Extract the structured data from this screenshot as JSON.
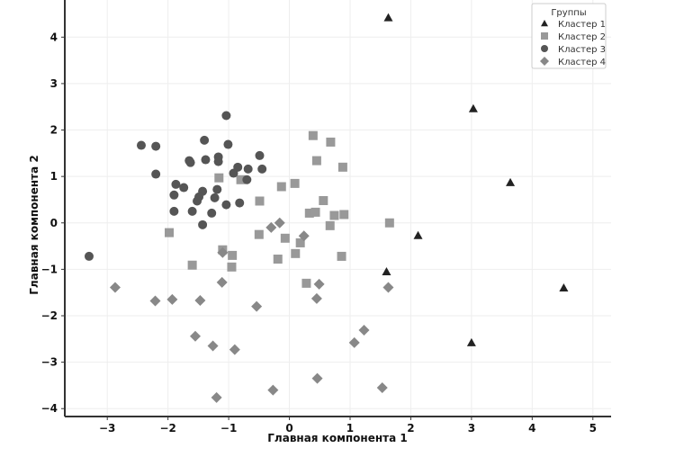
{
  "chart_data": {
    "type": "scatter",
    "title": "",
    "xlabel": "Главная компонента 1",
    "ylabel": "Главная компонента 2",
    "xlim": [
      -3.7,
      5.3
    ],
    "ylim": [
      -4.17,
      4.8
    ],
    "xticks": [
      "−3",
      "−2",
      "−1",
      "0",
      "1",
      "2",
      "3",
      "4",
      "5"
    ],
    "yticks": [
      "−4",
      "−3",
      "−2",
      "−1",
      "0",
      "1",
      "2",
      "3",
      "4"
    ],
    "grid": true,
    "legend": {
      "title": "Группы",
      "placement": "top-right"
    },
    "series": [
      {
        "name": "Кластер 1",
        "marker": "triangle",
        "color": "#222222",
        "points": [
          [
            1.63,
            4.42
          ],
          [
            3.03,
            2.46
          ],
          [
            3.64,
            0.87
          ],
          [
            2.12,
            -0.27
          ],
          [
            1.6,
            -1.05
          ],
          [
            4.52,
            -1.4
          ],
          [
            3.0,
            -2.58
          ]
        ]
      },
      {
        "name": "Кластер 2",
        "marker": "square",
        "color": "#999999",
        "points": [
          [
            -1.16,
            0.97
          ],
          [
            -0.8,
            0.93
          ],
          [
            -0.49,
            0.47
          ],
          [
            -1.98,
            -0.21
          ],
          [
            -0.5,
            -0.25
          ],
          [
            -1.1,
            -0.58
          ],
          [
            -0.94,
            -0.7
          ],
          [
            -1.6,
            -0.91
          ],
          [
            -0.95,
            -0.95
          ],
          [
            0.39,
            1.88
          ],
          [
            0.68,
            1.74
          ],
          [
            0.45,
            1.34
          ],
          [
            0.88,
            1.2
          ],
          [
            -0.13,
            0.78
          ],
          [
            0.09,
            0.85
          ],
          [
            0.56,
            0.48
          ],
          [
            0.33,
            0.21
          ],
          [
            0.43,
            0.23
          ],
          [
            0.74,
            0.16
          ],
          [
            0.9,
            0.18
          ],
          [
            0.67,
            -0.06
          ],
          [
            1.65,
            0.0
          ],
          [
            -0.07,
            -0.33
          ],
          [
            0.18,
            -0.43
          ],
          [
            0.1,
            -0.66
          ],
          [
            -0.19,
            -0.78
          ],
          [
            0.86,
            -0.72
          ],
          [
            0.28,
            -1.3
          ]
        ]
      },
      {
        "name": "Кластер 3",
        "marker": "circle",
        "color": "#555555",
        "points": [
          [
            -3.3,
            -0.72
          ],
          [
            -2.44,
            1.67
          ],
          [
            -2.2,
            1.65
          ],
          [
            -2.2,
            1.05
          ],
          [
            -1.87,
            0.83
          ],
          [
            -1.9,
            0.6
          ],
          [
            -1.9,
            0.25
          ],
          [
            -1.74,
            0.76
          ],
          [
            -1.65,
            1.34
          ],
          [
            -1.63,
            1.3
          ],
          [
            -1.6,
            0.25
          ],
          [
            -1.43,
            0.68
          ],
          [
            -1.49,
            0.56
          ],
          [
            -1.52,
            0.47
          ],
          [
            -1.43,
            -0.04
          ],
          [
            -1.4,
            1.78
          ],
          [
            -1.38,
            1.36
          ],
          [
            -1.28,
            0.21
          ],
          [
            -1.23,
            0.54
          ],
          [
            -1.19,
            0.72
          ],
          [
            -1.17,
            1.42
          ],
          [
            -1.17,
            1.32
          ],
          [
            -1.04,
            2.31
          ],
          [
            -1.04,
            0.39
          ],
          [
            -1.01,
            1.69
          ],
          [
            -0.92,
            1.07
          ],
          [
            -0.85,
            1.2
          ],
          [
            -0.82,
            0.43
          ],
          [
            -0.7,
            0.93
          ],
          [
            -0.68,
            1.16
          ],
          [
            -0.49,
            1.45
          ],
          [
            -0.45,
            1.16
          ]
        ]
      },
      {
        "name": "Кластер 4",
        "marker": "diamond",
        "color": "#888888",
        "points": [
          [
            -0.3,
            -0.1
          ],
          [
            -0.16,
            0.0
          ],
          [
            0.24,
            -0.28
          ],
          [
            -1.1,
            -0.64
          ],
          [
            -1.11,
            -1.28
          ],
          [
            0.49,
            -1.32
          ],
          [
            1.63,
            -1.39
          ],
          [
            -2.87,
            -1.39
          ],
          [
            -2.21,
            -1.68
          ],
          [
            -1.93,
            -1.65
          ],
          [
            -1.47,
            -1.67
          ],
          [
            -0.54,
            -1.8
          ],
          [
            0.45,
            -1.63
          ],
          [
            -1.55,
            -2.44
          ],
          [
            -1.26,
            -2.65
          ],
          [
            -0.9,
            -2.73
          ],
          [
            1.23,
            -2.31
          ],
          [
            1.07,
            -2.58
          ],
          [
            0.46,
            -3.35
          ],
          [
            -0.27,
            -3.6
          ],
          [
            -1.2,
            -3.76
          ],
          [
            1.53,
            -3.55
          ]
        ]
      }
    ]
  }
}
